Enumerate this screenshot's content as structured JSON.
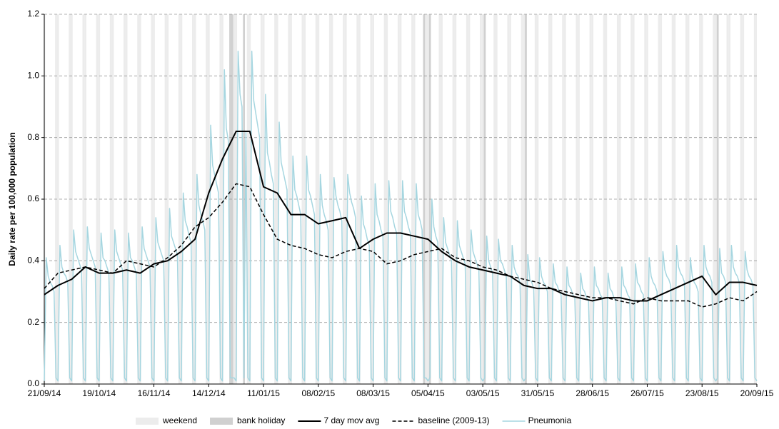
{
  "chart_data": {
    "type": "line",
    "y_label": "Daily rate per 100,000 population",
    "xlim": [
      0,
      364
    ],
    "ylim": [
      0,
      1.2
    ],
    "xticks": [
      {
        "value": 0,
        "label": "21/09/14"
      },
      {
        "value": 28,
        "label": "19/10/14"
      },
      {
        "value": 56,
        "label": "16/11/14"
      },
      {
        "value": 84,
        "label": "14/12/14"
      },
      {
        "value": 112,
        "label": "11/01/15"
      },
      {
        "value": 140,
        "label": "08/02/15"
      },
      {
        "value": 168,
        "label": "08/03/15"
      },
      {
        "value": 196,
        "label": "05/04/15"
      },
      {
        "value": 224,
        "label": "03/05/15"
      },
      {
        "value": 252,
        "label": "31/05/15"
      },
      {
        "value": 280,
        "label": "28/06/15"
      },
      {
        "value": 308,
        "label": "26/07/15"
      },
      {
        "value": 336,
        "label": "23/08/15"
      },
      {
        "value": 364,
        "label": "20/09/15"
      }
    ],
    "yticks": [
      {
        "value": 0,
        "label": "0.0"
      },
      {
        "value": 0.2,
        "label": "0.2"
      },
      {
        "value": 0.4,
        "label": "0.4"
      },
      {
        "value": 0.6,
        "label": "0.6"
      },
      {
        "value": 0.8,
        "label": "0.8"
      },
      {
        "value": 1,
        "label": "1.0"
      },
      {
        "value": 1.2,
        "label": "1.2"
      }
    ],
    "grid": true,
    "shading": [
      {
        "name": "weekend",
        "color": "#ececec",
        "days": [
          0,
          6,
          7,
          13,
          14,
          20,
          21,
          27,
          28,
          34,
          35,
          41,
          42,
          48,
          49,
          55,
          56,
          62,
          63,
          69,
          70,
          76,
          77,
          83,
          84,
          90,
          91,
          97,
          98,
          104,
          105,
          111,
          112,
          118,
          119,
          125,
          126,
          132,
          133,
          139,
          140,
          146,
          147,
          153,
          154,
          160,
          161,
          167,
          168,
          174,
          175,
          181,
          182,
          188,
          189,
          195,
          196,
          202,
          203,
          209,
          210,
          216,
          217,
          223,
          224,
          230,
          231,
          237,
          238,
          244,
          245,
          251,
          252,
          258,
          259,
          265,
          266,
          272,
          273,
          279,
          280,
          286,
          287,
          293,
          294,
          300,
          301,
          307,
          308,
          314,
          315,
          321,
          322,
          328,
          329,
          335,
          336,
          342,
          343,
          349,
          350,
          356,
          357,
          363,
          364
        ]
      },
      {
        "name": "bank holiday",
        "color": "#d0d0d0",
        "days": [
          95,
          96,
          102,
          194,
          197,
          225,
          246,
          344
        ]
      }
    ],
    "series": [
      {
        "name": "7 day mov avg",
        "color": "#000000",
        "dash": false,
        "width": 2,
        "x": [
          0,
          7,
          14,
          21,
          28,
          35,
          42,
          49,
          56,
          63,
          70,
          77,
          84,
          91,
          98,
          105,
          112,
          119,
          126,
          133,
          140,
          147,
          154,
          161,
          168,
          175,
          182,
          189,
          196,
          203,
          210,
          217,
          224,
          231,
          238,
          245,
          252,
          259,
          266,
          273,
          280,
          287,
          294,
          301,
          308,
          315,
          322,
          329,
          336,
          343,
          350,
          357,
          364
        ],
        "values": [
          0.29,
          0.32,
          0.34,
          0.38,
          0.36,
          0.36,
          0.37,
          0.36,
          0.39,
          0.4,
          0.43,
          0.47,
          0.62,
          0.73,
          0.82,
          0.82,
          0.64,
          0.62,
          0.55,
          0.55,
          0.52,
          0.53,
          0.54,
          0.44,
          0.47,
          0.49,
          0.49,
          0.48,
          0.47,
          0.43,
          0.4,
          0.38,
          0.37,
          0.36,
          0.35,
          0.32,
          0.31,
          0.31,
          0.29,
          0.28,
          0.27,
          0.28,
          0.28,
          0.27,
          0.27,
          0.29,
          0.31,
          0.33,
          0.35,
          0.29,
          0.33,
          0.33,
          0.32
        ]
      },
      {
        "name": "baseline (2009-13)",
        "color": "#000000",
        "dash": true,
        "width": 1.5,
        "x": [
          0,
          7,
          14,
          21,
          28,
          35,
          42,
          49,
          56,
          63,
          70,
          77,
          84,
          91,
          98,
          105,
          112,
          119,
          126,
          133,
          140,
          147,
          154,
          161,
          168,
          175,
          182,
          189,
          196,
          203,
          210,
          217,
          224,
          231,
          238,
          245,
          252,
          259,
          266,
          273,
          280,
          287,
          294,
          301,
          308,
          315,
          322,
          329,
          336,
          343,
          350,
          357,
          364
        ],
        "values": [
          0.31,
          0.36,
          0.37,
          0.38,
          0.37,
          0.36,
          0.4,
          0.39,
          0.38,
          0.41,
          0.45,
          0.51,
          0.54,
          0.59,
          0.65,
          0.64,
          0.55,
          0.47,
          0.45,
          0.44,
          0.42,
          0.41,
          0.43,
          0.44,
          0.43,
          0.39,
          0.4,
          0.42,
          0.43,
          0.44,
          0.41,
          0.4,
          0.38,
          0.37,
          0.35,
          0.34,
          0.33,
          0.31,
          0.3,
          0.29,
          0.28,
          0.28,
          0.27,
          0.26,
          0.28,
          0.27,
          0.27,
          0.27,
          0.25,
          0.26,
          0.28,
          0.27,
          0.3
        ]
      },
      {
        "name": "Pneumonia",
        "color": "#a6d6e0",
        "dash": false,
        "width": 1.5,
        "x": [
          0,
          1,
          2,
          3,
          4,
          5,
          6,
          7,
          8,
          9,
          10,
          11,
          12,
          13,
          14,
          15,
          16,
          17,
          18,
          19,
          20,
          21,
          22,
          23,
          24,
          25,
          26,
          27,
          28,
          29,
          30,
          31,
          32,
          33,
          34,
          35,
          36,
          37,
          38,
          39,
          40,
          41,
          42,
          43,
          44,
          45,
          46,
          47,
          48,
          49,
          50,
          51,
          52,
          53,
          54,
          55,
          56,
          57,
          58,
          59,
          60,
          61,
          62,
          63,
          64,
          65,
          66,
          67,
          68,
          69,
          70,
          71,
          72,
          73,
          74,
          75,
          76,
          77,
          78,
          79,
          80,
          81,
          82,
          83,
          84,
          85,
          86,
          87,
          88,
          89,
          90,
          91,
          92,
          93,
          94,
          95,
          96,
          97,
          98,
          99,
          100,
          101,
          102,
          103,
          104,
          105,
          106,
          107,
          108,
          109,
          110,
          111,
          112,
          113,
          114,
          115,
          116,
          117,
          118,
          119,
          120,
          121,
          122,
          123,
          124,
          125,
          126,
          127,
          128,
          129,
          130,
          131,
          132,
          133,
          134,
          135,
          136,
          137,
          138,
          139,
          140,
          141,
          142,
          143,
          144,
          145,
          146,
          147,
          148,
          149,
          150,
          151,
          152,
          153,
          154,
          155,
          156,
          157,
          158,
          159,
          160,
          161,
          162,
          163,
          164,
          165,
          166,
          167,
          168,
          169,
          170,
          171,
          172,
          173,
          174,
          175,
          176,
          177,
          178,
          179,
          180,
          181,
          182,
          183,
          184,
          185,
          186,
          187,
          188,
          189,
          190,
          191,
          192,
          193,
          194,
          195,
          196,
          197,
          198,
          199,
          200,
          201,
          202,
          203,
          204,
          205,
          206,
          207,
          208,
          209,
          210,
          211,
          212,
          213,
          214,
          215,
          216,
          217,
          218,
          219,
          220,
          221,
          222,
          223,
          224,
          225,
          226,
          227,
          228,
          229,
          230,
          231,
          232,
          233,
          234,
          235,
          236,
          237,
          238,
          239,
          240,
          241,
          242,
          243,
          244,
          245,
          246,
          247,
          248,
          249,
          250,
          251,
          252,
          253,
          254,
          255,
          256,
          257,
          258,
          259,
          260,
          261,
          262,
          263,
          264,
          265,
          266,
          267,
          268,
          269,
          270,
          271,
          272,
          273,
          274,
          275,
          276,
          277,
          278,
          279,
          280,
          281,
          282,
          283,
          284,
          285,
          286,
          287,
          288,
          289,
          290,
          291,
          292,
          293,
          294,
          295,
          296,
          297,
          298,
          299,
          300,
          301,
          302,
          303,
          304,
          305,
          306,
          307,
          308,
          309,
          310,
          311,
          312,
          313,
          314,
          315,
          316,
          317,
          318,
          319,
          320,
          321,
          322,
          323,
          324,
          325,
          326,
          327,
          328,
          329,
          330,
          331,
          332,
          333,
          334,
          335,
          336,
          337,
          338,
          339,
          340,
          341,
          342,
          343,
          344,
          345,
          346,
          347,
          348,
          349,
          350,
          351,
          352,
          353,
          354,
          355,
          356,
          357,
          358,
          359,
          360,
          361,
          362,
          363,
          364
        ],
        "values": [
          0.01,
          0.41,
          0.35,
          0.33,
          0.32,
          0.3,
          0.02,
          0.01,
          0.45,
          0.38,
          0.36,
          0.35,
          0.33,
          0.02,
          0.01,
          0.5,
          0.43,
          0.41,
          0.39,
          0.37,
          0.02,
          0.01,
          0.51,
          0.44,
          0.42,
          0.4,
          0.38,
          0.02,
          0.01,
          0.49,
          0.41,
          0.4,
          0.38,
          0.36,
          0.02,
          0.01,
          0.5,
          0.43,
          0.41,
          0.39,
          0.37,
          0.02,
          0.01,
          0.49,
          0.41,
          0.4,
          0.38,
          0.36,
          0.02,
          0.01,
          0.51,
          0.44,
          0.42,
          0.4,
          0.38,
          0.02,
          0.01,
          0.54,
          0.46,
          0.44,
          0.42,
          0.4,
          0.02,
          0.01,
          0.57,
          0.48,
          0.46,
          0.44,
          0.42,
          0.02,
          0.01,
          0.62,
          0.53,
          0.51,
          0.48,
          0.46,
          0.02,
          0.01,
          0.68,
          0.58,
          0.55,
          0.53,
          0.5,
          0.02,
          0.01,
          0.84,
          0.71,
          0.68,
          0.65,
          0.62,
          0.02,
          0.01,
          1.02,
          0.83,
          0.79,
          0.02,
          0.02,
          0.02,
          0.01,
          1.08,
          0.94,
          0.9,
          0.02,
          0.82,
          0.02,
          0.01,
          1.08,
          0.92,
          0.88,
          0.84,
          0.8,
          0.02,
          0.01,
          0.94,
          0.75,
          0.72,
          0.68,
          0.65,
          0.02,
          0.01,
          0.85,
          0.72,
          0.69,
          0.66,
          0.63,
          0.02,
          0.01,
          0.74,
          0.63,
          0.61,
          0.58,
          0.55,
          0.02,
          0.01,
          0.74,
          0.63,
          0.61,
          0.58,
          0.55,
          0.02,
          0.01,
          0.68,
          0.58,
          0.55,
          0.53,
          0.5,
          0.02,
          0.01,
          0.67,
          0.61,
          0.58,
          0.56,
          0.53,
          0.02,
          0.01,
          0.68,
          0.62,
          0.59,
          0.57,
          0.54,
          0.02,
          0.01,
          0.61,
          0.52,
          0.5,
          0.47,
          0.45,
          0.02,
          0.01,
          0.65,
          0.55,
          0.53,
          0.5,
          0.48,
          0.02,
          0.01,
          0.66,
          0.56,
          0.54,
          0.51,
          0.49,
          0.02,
          0.01,
          0.66,
          0.56,
          0.54,
          0.51,
          0.49,
          0.02,
          0.01,
          0.65,
          0.55,
          0.53,
          0.5,
          0.02,
          0.02,
          0.01,
          0.02,
          0.6,
          0.51,
          0.48,
          0.46,
          0.02,
          0.01,
          0.54,
          0.46,
          0.44,
          0.42,
          0.4,
          0.02,
          0.01,
          0.53,
          0.45,
          0.43,
          0.41,
          0.39,
          0.02,
          0.01,
          0.5,
          0.43,
          0.41,
          0.39,
          0.37,
          0.02,
          0.01,
          0.02,
          0.48,
          0.4,
          0.38,
          0.36,
          0.02,
          0.01,
          0.47,
          0.4,
          0.39,
          0.37,
          0.35,
          0.02,
          0.01,
          0.45,
          0.38,
          0.36,
          0.35,
          0.33,
          0.02,
          0.01,
          0.02,
          0.42,
          0.34,
          0.33,
          0.31,
          0.02,
          0.01,
          0.41,
          0.35,
          0.33,
          0.32,
          0.3,
          0.02,
          0.01,
          0.39,
          0.33,
          0.32,
          0.3,
          0.29,
          0.02,
          0.01,
          0.38,
          0.32,
          0.31,
          0.29,
          0.28,
          0.02,
          0.01,
          0.36,
          0.31,
          0.3,
          0.28,
          0.27,
          0.02,
          0.01,
          0.38,
          0.32,
          0.31,
          0.29,
          0.28,
          0.02,
          0.01,
          0.36,
          0.31,
          0.3,
          0.28,
          0.27,
          0.02,
          0.01,
          0.38,
          0.32,
          0.31,
          0.29,
          0.28,
          0.02,
          0.01,
          0.39,
          0.33,
          0.32,
          0.3,
          0.29,
          0.02,
          0.01,
          0.41,
          0.35,
          0.33,
          0.32,
          0.3,
          0.02,
          0.01,
          0.43,
          0.37,
          0.35,
          0.34,
          0.32,
          0.02,
          0.01,
          0.45,
          0.38,
          0.36,
          0.35,
          0.33,
          0.02,
          0.01,
          0.41,
          0.35,
          0.33,
          0.32,
          0.3,
          0.02,
          0.01,
          0.45,
          0.38,
          0.36,
          0.35,
          0.33,
          0.02,
          0.01,
          0.02,
          0.44,
          0.36,
          0.35,
          0.33,
          0.02,
          0.01,
          0.45,
          0.38,
          0.36,
          0.35,
          0.33,
          0.02,
          0.01,
          0.43,
          0.37,
          0.35,
          0.34,
          0.32,
          0.02,
          0.01
        ]
      }
    ]
  }
}
